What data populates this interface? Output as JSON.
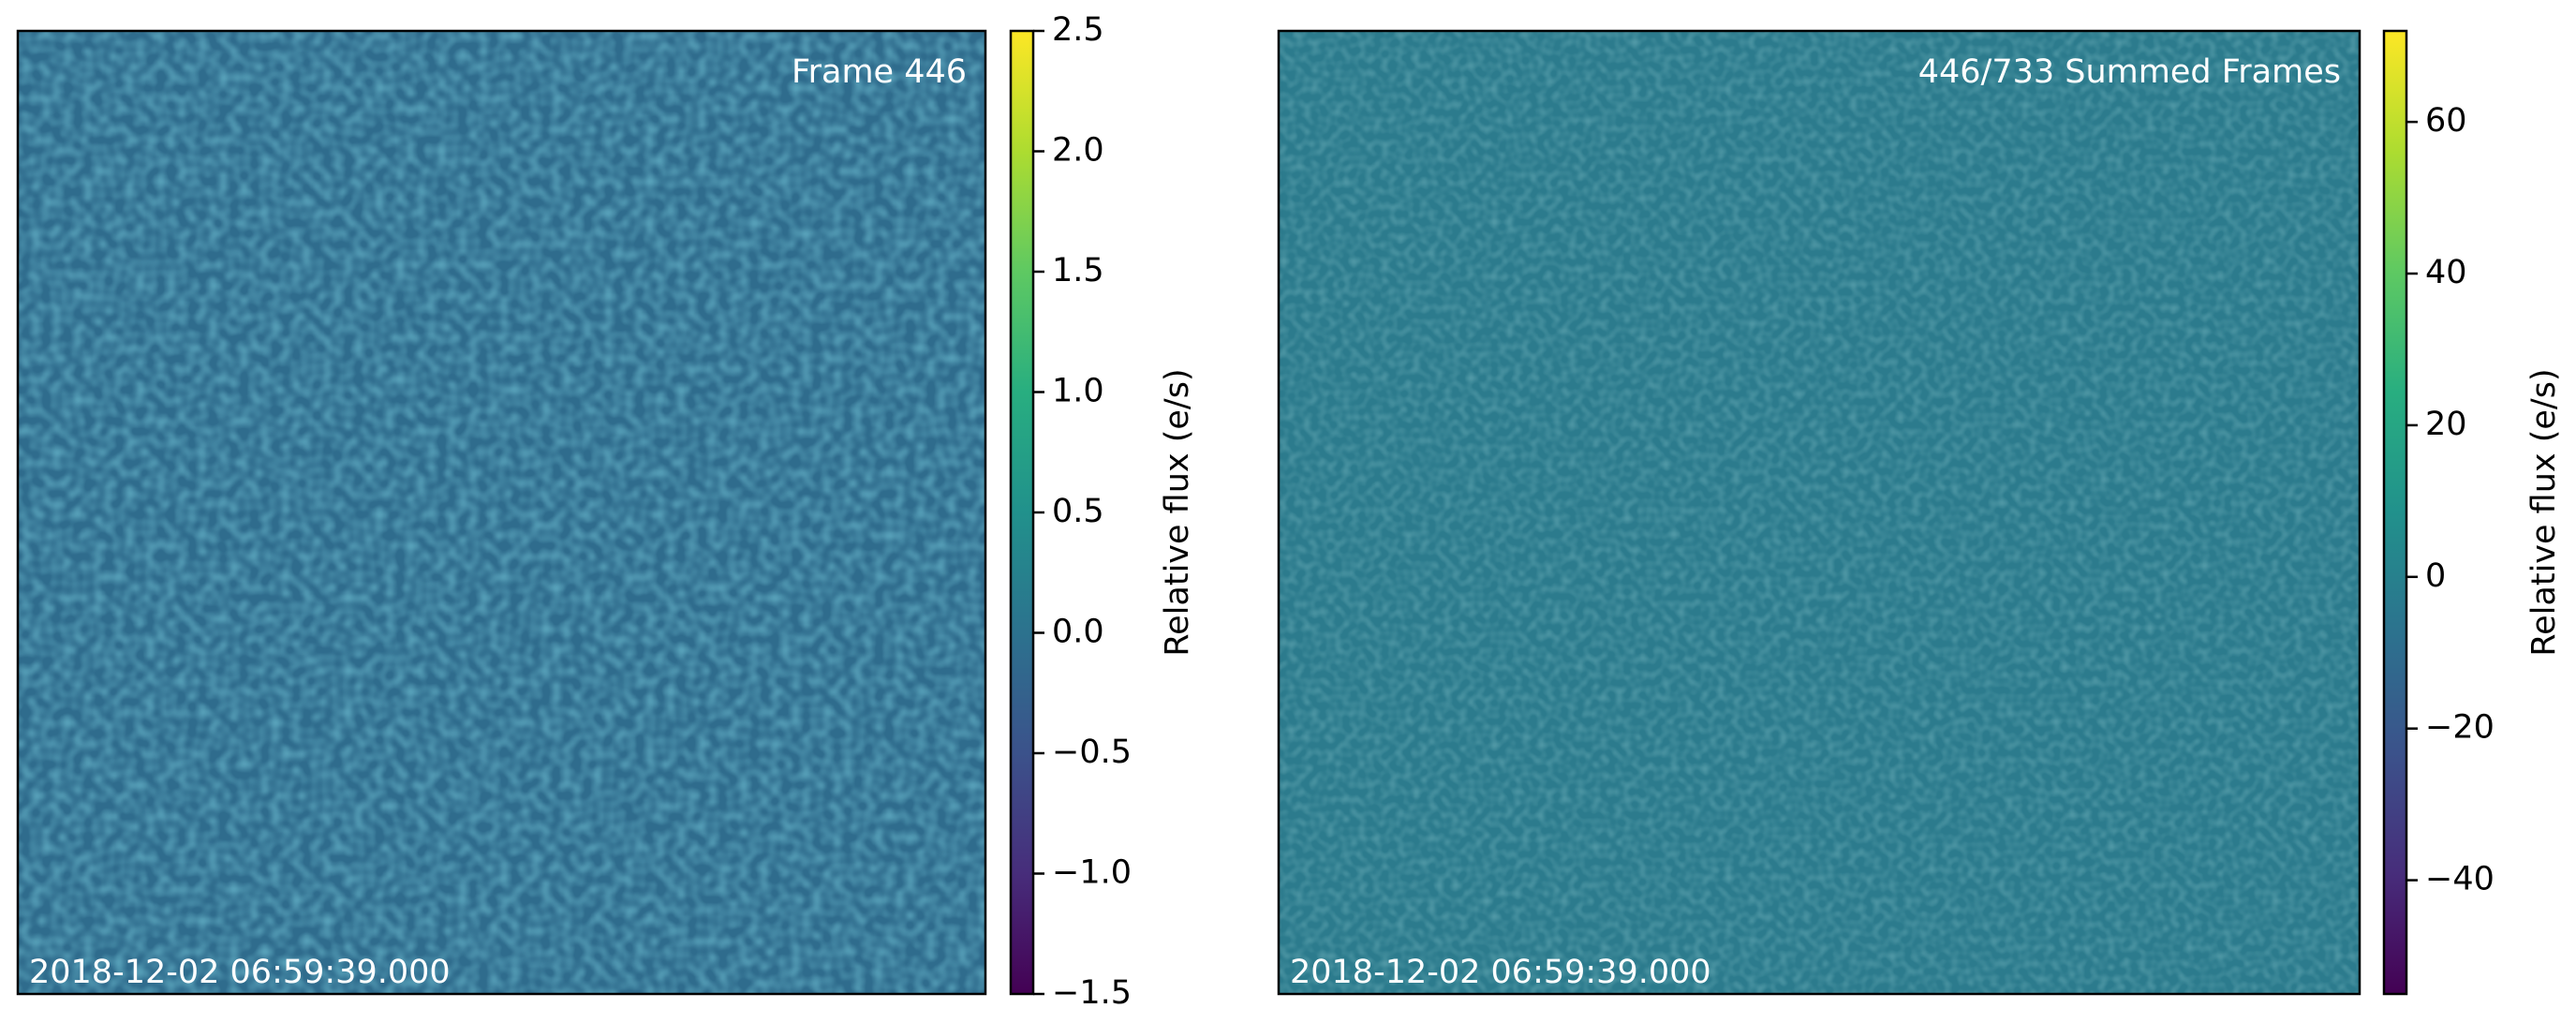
{
  "chart_data": [
    {
      "type": "image",
      "annotation": "Frame 446",
      "timestamp": "2018-12-02 06:59:39.000",
      "colormap": "viridis",
      "colorbar": {
        "label": "Relative flux (e/s)",
        "lim": [
          -1.5,
          2.5
        ],
        "ticks": [
          {
            "value": -1.5,
            "label": "−1.5"
          },
          {
            "value": -1.0,
            "label": "−1.0"
          },
          {
            "value": -0.5,
            "label": "−0.5"
          },
          {
            "value": 0,
            "label": "0.0"
          },
          0.5,
          {
            "value": 1,
            "label": "1.0"
          },
          1.5,
          {
            "value": 2,
            "label": "2.0"
          },
          2.5
        ]
      }
    },
    {
      "type": "image",
      "annotation": "446/733 Summed Frames",
      "timestamp": "2018-12-02 06:59:39.000",
      "colormap": "viridis",
      "colorbar": {
        "label": "Relative flux (e/s)",
        "lim": [
          -55,
          72
        ],
        "ticks": [
          {
            "value": -40,
            "label": "−40"
          },
          {
            "value": -20,
            "label": "−20"
          },
          0,
          20,
          40,
          60
        ]
      }
    }
  ]
}
